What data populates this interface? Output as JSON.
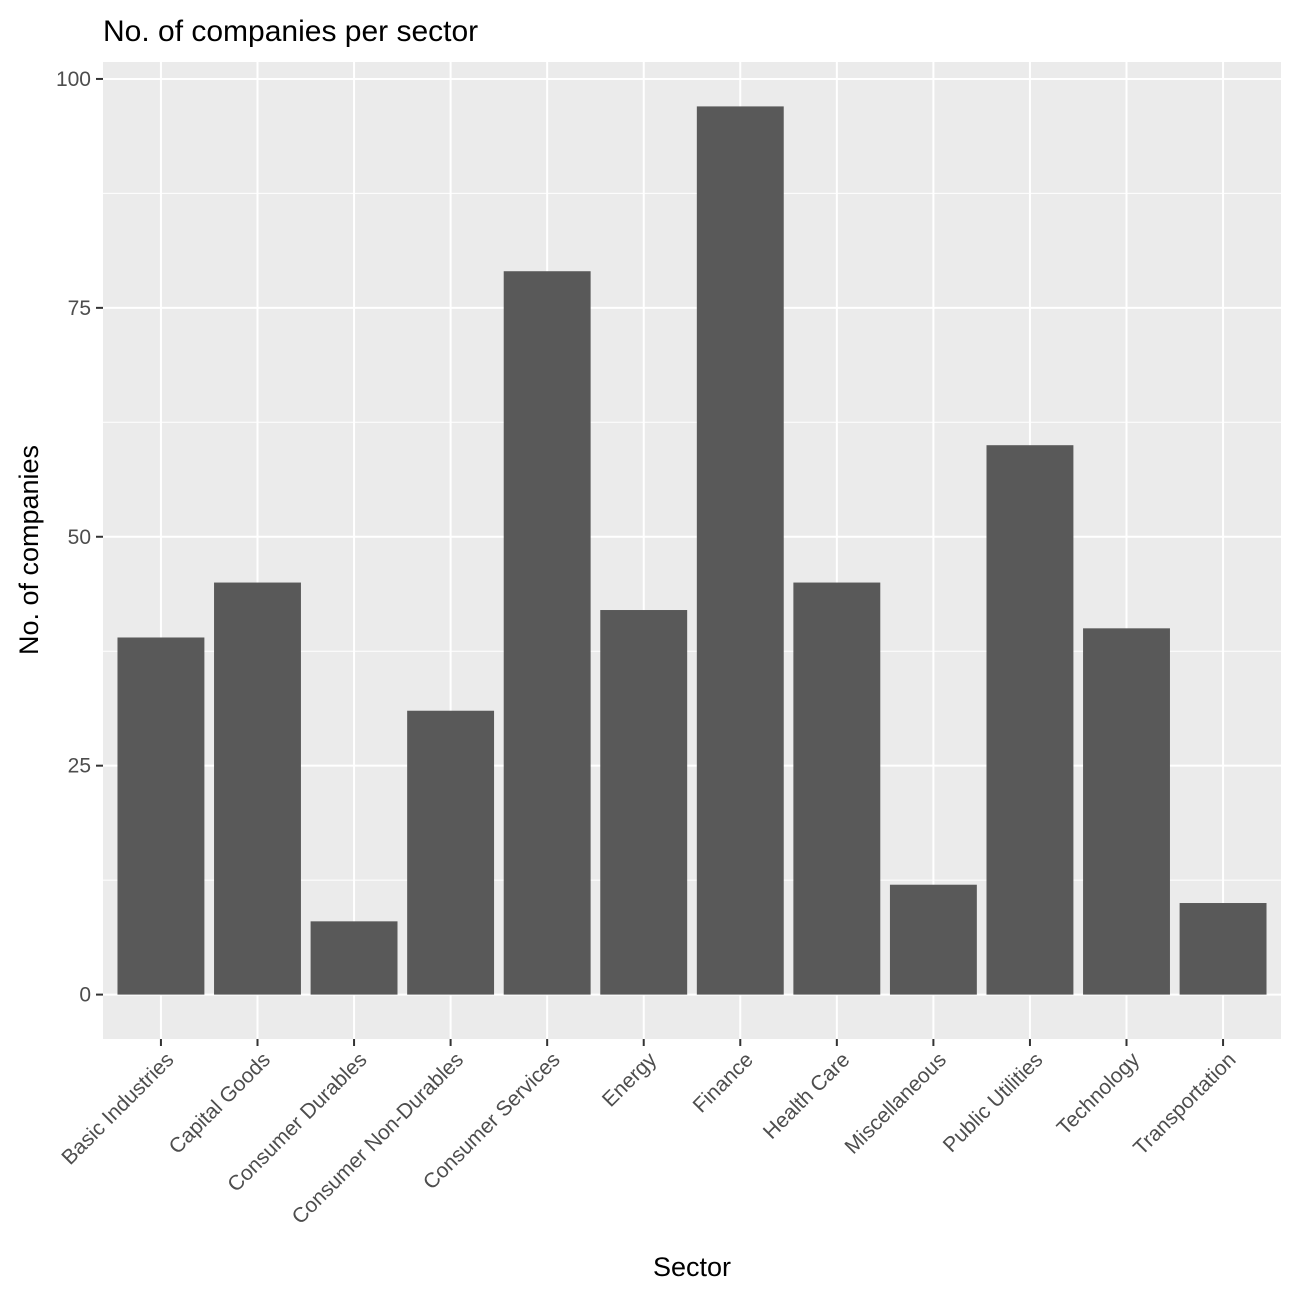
{
  "chart_data": {
    "type": "bar",
    "title": "No. of companies per sector",
    "xlabel": "Sector",
    "ylabel": "No. of companies",
    "categories": [
      "Basic Industries",
      "Capital Goods",
      "Consumer Durables",
      "Consumer Non-Durables",
      "Consumer Services",
      "Energy",
      "Finance",
      "Health Care",
      "Miscellaneous",
      "Public Utilities",
      "Technology",
      "Transportation"
    ],
    "values": [
      39,
      45,
      8,
      31,
      79,
      42,
      97,
      45,
      12,
      60,
      40,
      10
    ],
    "ylim": [
      -4.85,
      101.85
    ],
    "yticks": [
      0,
      25,
      50,
      75,
      100
    ],
    "ytick_labels": [
      "0",
      "25",
      "50",
      "75",
      "100"
    ],
    "grid": true,
    "legend": "none"
  },
  "colors": {
    "panel_background": "#ebebeb",
    "grid_major": "#ffffff",
    "bar_fill": "#595959",
    "tick_text": "#4d4d4d",
    "tick_mark": "#333333",
    "title_text": "#000000"
  }
}
